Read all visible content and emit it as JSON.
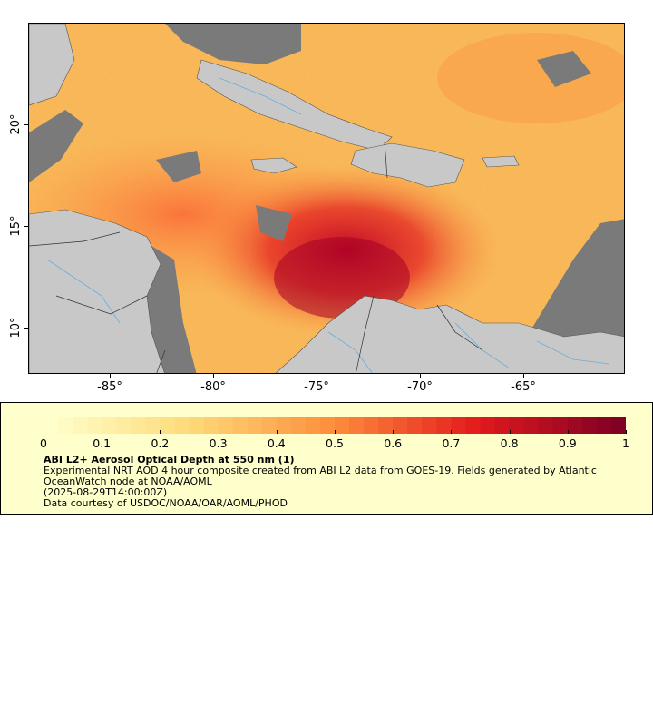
{
  "map": {
    "longitude_labels": [
      "-85°",
      "-80°",
      "-75°",
      "-70°",
      "-65°"
    ],
    "latitude_labels": [
      "20°",
      "15°",
      "10°"
    ],
    "land_color": "#c8c8c8",
    "missing_color": "#7a7a7a",
    "water_color": "#6baed6"
  },
  "colorbar": {
    "ticks": [
      "0",
      "0.1",
      "0.2",
      "0.3",
      "0.4",
      "0.5",
      "0.6",
      "0.7",
      "0.8",
      "0.9",
      "1"
    ],
    "range": [
      0,
      1
    ],
    "colors": [
      "#ffffcc",
      "#fed976",
      "#fd8d3c",
      "#e31a1c",
      "#800026"
    ]
  },
  "legend": {
    "title": "ABI L2+ Aerosol Optical Depth at 550 nm (1)",
    "description": "Experimental NRT AOD 4 hour composite created from ABI L2 data from GOES-19. Fields generated by Atlantic OceanWatch node at NOAA/AOML",
    "time": "(2025-08-29T14:00:00Z)",
    "credit": "Data courtesy of USDOC/NOAA/OAR/AOML/PHOD"
  }
}
